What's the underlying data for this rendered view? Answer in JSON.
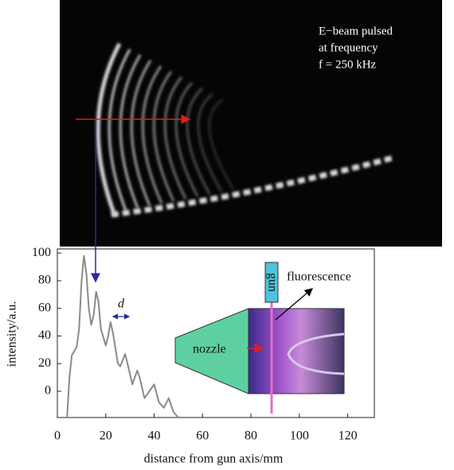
{
  "chart_data": {
    "type": "line",
    "xlabel": "distance from gun axis/mm",
    "ylabel": "intensity/a.u.",
    "x": [
      4,
      5,
      6,
      8,
      9,
      10,
      11,
      12,
      13,
      14,
      15,
      16,
      17,
      18,
      20,
      21,
      22,
      23,
      25,
      26,
      28,
      29,
      31,
      33,
      34,
      36,
      38,
      40,
      42,
      44,
      46,
      48,
      50
    ],
    "values": [
      -19,
      10,
      26,
      32,
      45,
      80,
      98,
      85,
      60,
      48,
      55,
      72,
      65,
      45,
      33,
      40,
      50,
      42,
      20,
      18,
      27,
      20,
      5,
      15,
      10,
      -5,
      0,
      5,
      -8,
      -12,
      -5,
      -15,
      -19
    ],
    "color": "#8a8a8a",
    "xlim": [
      0,
      131
    ],
    "ylim": [
      -19,
      103
    ],
    "xticks": [
      0,
      20,
      40,
      60,
      80,
      100,
      120
    ],
    "yticks": [
      0,
      20,
      40,
      60,
      80,
      100
    ]
  },
  "photo": {
    "caption_lines": [
      "E−beam pulsed",
      "at frequency",
      "f = 250 kHz"
    ]
  },
  "inset": {
    "gun": "gun",
    "fluorescence": "fluorescence",
    "nozzle": "nozzle",
    "spacing": "d"
  }
}
